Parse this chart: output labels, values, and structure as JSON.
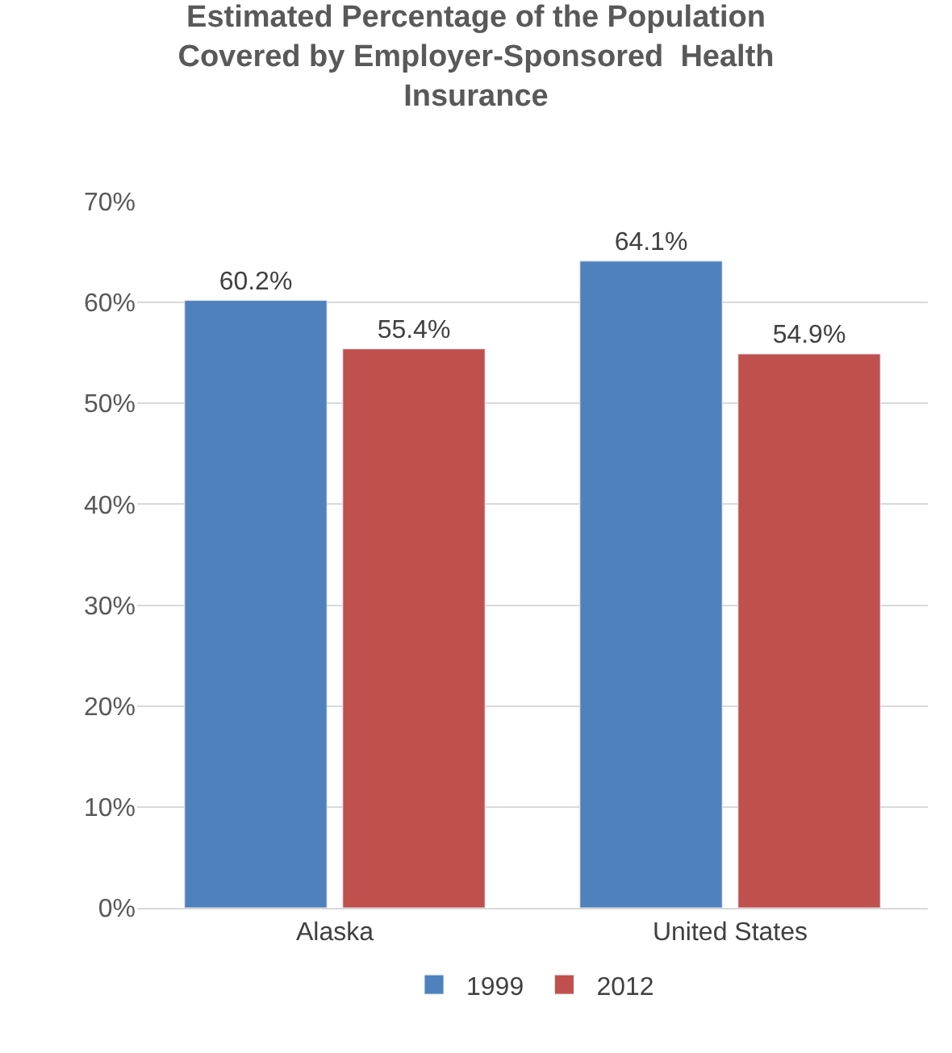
{
  "chart_data": {
    "type": "bar",
    "title": "Estimated Percentage of the Population Covered by Employer-Sponsored  Health Insurance",
    "categories": [
      "Alaska",
      "United States"
    ],
    "series": [
      {
        "name": "1999",
        "color": "#4f81bd",
        "values": [
          60.2,
          64.1
        ],
        "value_labels": [
          "60.2%",
          "64.1%"
        ]
      },
      {
        "name": "2012",
        "color": "#c0504d",
        "values": [
          55.4,
          54.9
        ],
        "value_labels": [
          "55.4%",
          "54.9%"
        ]
      }
    ],
    "ylim": [
      0,
      70
    ],
    "yticks": [
      {
        "value": 0,
        "label": "0%"
      },
      {
        "value": 10,
        "label": "10%"
      },
      {
        "value": 20,
        "label": "20%"
      },
      {
        "value": 30,
        "label": "30%"
      },
      {
        "value": 40,
        "label": "40%"
      },
      {
        "value": 50,
        "label": "50%"
      },
      {
        "value": 60,
        "label": "60%"
      },
      {
        "value": 70,
        "label": "70%"
      }
    ],
    "grid": "y",
    "legend": "bottom"
  }
}
